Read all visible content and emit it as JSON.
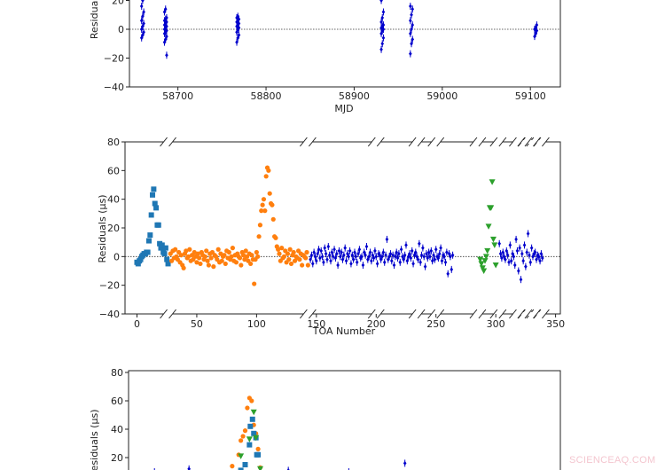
{
  "chart_data": [
    {
      "type": "scatter",
      "xlabel": "MJD",
      "ylabel": "Residuals",
      "xticks": [
        58700,
        58800,
        58900,
        59000,
        59100
      ],
      "yticks": [
        -40,
        -20,
        0,
        20
      ],
      "xlim": [
        58645,
        59134
      ],
      "grid": false,
      "zero_line": true,
      "color": "#0000cc",
      "marker": "diamond",
      "clusters": [
        {
          "mjd": 58660,
          "y": [
            -6,
            -4,
            -2,
            0,
            2,
            4,
            6,
            9,
            12,
            16,
            20
          ]
        },
        {
          "mjd": 58686,
          "y": [
            -9,
            -7,
            -5,
            -3,
            -2,
            -1,
            0,
            1,
            2,
            3,
            4,
            5,
            6,
            7,
            8,
            12,
            14,
            -18
          ]
        },
        {
          "mjd": 58768,
          "y": [
            -9,
            -6,
            -4,
            -2,
            0,
            1,
            2,
            3,
            4,
            5,
            6,
            7,
            8,
            9
          ]
        },
        {
          "mjd": 58932,
          "y": [
            -14,
            -10,
            -6,
            -3,
            -1,
            0,
            1,
            2,
            3,
            5,
            8,
            12,
            20,
            25
          ]
        },
        {
          "mjd": 58965,
          "y": [
            -17,
            -10,
            -7,
            -3,
            0,
            3,
            6,
            10,
            14,
            16
          ]
        },
        {
          "mjd": 59106,
          "y": [
            -5,
            -3,
            -1,
            0,
            1,
            3
          ]
        }
      ]
    },
    {
      "type": "scatter",
      "xlabel": "TOA Number",
      "ylabel": "Residuals (μs)",
      "xticks": [
        0,
        50,
        100,
        150,
        200,
        250,
        300,
        350
      ],
      "yticks": [
        -40,
        -20,
        0,
        20,
        40,
        60,
        80
      ],
      "xlim": [
        -10,
        354
      ],
      "ylim": [
        -40,
        80
      ],
      "grid": false,
      "zero_line": true,
      "axis_breaks": [
        26,
        143,
        200,
        234,
        250,
        285,
        302,
        318,
        325,
        331,
        338
      ],
      "series": [
        {
          "marker": "square",
          "color": "#1f77b4",
          "x_start": 0,
          "y": [
            -4,
            -5,
            -3,
            -2,
            0,
            1,
            2,
            2,
            3,
            3,
            11,
            15,
            29,
            43,
            47,
            37,
            34,
            22,
            22,
            9,
            6,
            8,
            3,
            2,
            6,
            -2,
            -5
          ]
        },
        {
          "marker": "circle",
          "color": "#ff7f0e",
          "x_start": 28,
          "y": [
            2,
            -3,
            4,
            -1,
            5,
            0,
            -2,
            3,
            -4,
            1,
            -6,
            -8,
            2,
            4,
            -1,
            0,
            5,
            -3,
            1,
            -2,
            3,
            0,
            -4,
            2,
            -1,
            -5,
            3,
            1,
            -2,
            0,
            4,
            -3,
            -6,
            2,
            -1,
            3,
            -7,
            1,
            0,
            -2,
            5,
            -4,
            2,
            -3,
            0,
            1,
            -5,
            4,
            -1,
            3,
            -2,
            0,
            6,
            -3,
            1,
            -4,
            2,
            0,
            -1,
            -6,
            3,
            1,
            -2,
            4,
            0,
            -3,
            2,
            -5,
            1,
            -2,
            -19,
            -2,
            3,
            0,
            14,
            22,
            32,
            36,
            40,
            32,
            56,
            62,
            60,
            44,
            37,
            36,
            26,
            14,
            13,
            7,
            5,
            2,
            -3,
            6,
            -1,
            0,
            4,
            -4,
            2,
            -2,
            5,
            -5,
            1,
            3,
            -3,
            0,
            -1,
            4,
            -2,
            2,
            -6,
            1,
            0,
            -1,
            3,
            -6
          ]
        },
        {
          "marker": "diamond",
          "color": "#0000cc",
          "x_start": 145,
          "y": [
            -2,
            1,
            -5,
            3,
            0,
            -3,
            2,
            5,
            -1,
            4,
            0,
            -4,
            6,
            2,
            -2,
            7,
            1,
            -3,
            3,
            0,
            5,
            -1,
            2,
            -6,
            4,
            0,
            3,
            -2,
            1,
            6,
            -3,
            2,
            0,
            4,
            -5,
            1,
            -2,
            3,
            0,
            -4,
            2,
            5,
            -1,
            0,
            -6,
            3,
            1,
            7,
            -2,
            0,
            3,
            -3,
            1,
            -1,
            4,
            0,
            -5,
            2,
            1,
            -2,
            0,
            3,
            -4,
            1,
            12,
            -2,
            0,
            2,
            -3,
            1,
            -6,
            0,
            3,
            -1,
            2,
            -4,
            5,
            0,
            -2,
            1,
            8,
            -3,
            0,
            2,
            -1,
            4,
            -5,
            1,
            3,
            0,
            -2,
            9,
            -4,
            1,
            6,
            0,
            -7,
            2,
            -1,
            3,
            0,
            4,
            -3,
            1,
            -2,
            5,
            0,
            -1,
            2,
            6,
            -3,
            1,
            0,
            -4,
            3,
            -12,
            2,
            0,
            -9,
            1
          ]
        },
        {
          "marker": "triangle-down",
          "color": "#2ca02c",
          "x_start": 287,
          "y": [
            -2,
            -5,
            -8,
            -10,
            -3,
            0,
            4,
            21,
            34,
            34,
            52,
            12,
            8,
            -6
          ]
        },
        {
          "marker": "diamond",
          "color": "#0000cc",
          "x_start": 303,
          "y": [
            9,
            2,
            -1,
            3,
            0,
            -2,
            4,
            1,
            -4,
            8,
            -3,
            2,
            0,
            -6,
            12,
            4,
            -10,
            6,
            -16,
            2,
            -3,
            8,
            -7,
            3,
            16,
            1,
            -4,
            6,
            0,
            2,
            3,
            -2,
            1,
            0,
            -3,
            2,
            -1
          ]
        }
      ]
    },
    {
      "type": "scatter",
      "ylabel": "Residuals (μs)",
      "yticks": [
        20,
        40,
        60,
        80
      ],
      "grid": false,
      "series": [
        {
          "marker": "diamond",
          "color": "#0000cc",
          "x": [
            0.06,
            0.14,
            0.37,
            0.51,
            0.64
          ],
          "y": [
            10,
            12,
            11,
            10,
            16
          ]
        },
        {
          "marker": "circle",
          "color": "#ff7f0e",
          "x": [
            0.24,
            0.255,
            0.26,
            0.265,
            0.27,
            0.275,
            0.28,
            0.285,
            0.29,
            0.295,
            0.3,
            0.305
          ],
          "y": [
            14,
            22,
            32,
            35,
            39,
            55,
            62,
            60,
            43,
            37,
            26,
            13
          ]
        },
        {
          "marker": "square",
          "color": "#1f77b4",
          "x": [
            0.26,
            0.27,
            0.28,
            0.282,
            0.287,
            0.29,
            0.295,
            0.297,
            0.3
          ],
          "y": [
            11,
            15,
            29,
            42,
            47,
            37,
            34,
            22,
            22
          ]
        },
        {
          "marker": "triangle-down",
          "color": "#2ca02c",
          "x": [
            0.26,
            0.28,
            0.29,
            0.295,
            0.305
          ],
          "y": [
            21,
            33,
            52,
            34,
            12
          ]
        }
      ]
    }
  ],
  "watermark": "SCIENCEAQ.COM"
}
